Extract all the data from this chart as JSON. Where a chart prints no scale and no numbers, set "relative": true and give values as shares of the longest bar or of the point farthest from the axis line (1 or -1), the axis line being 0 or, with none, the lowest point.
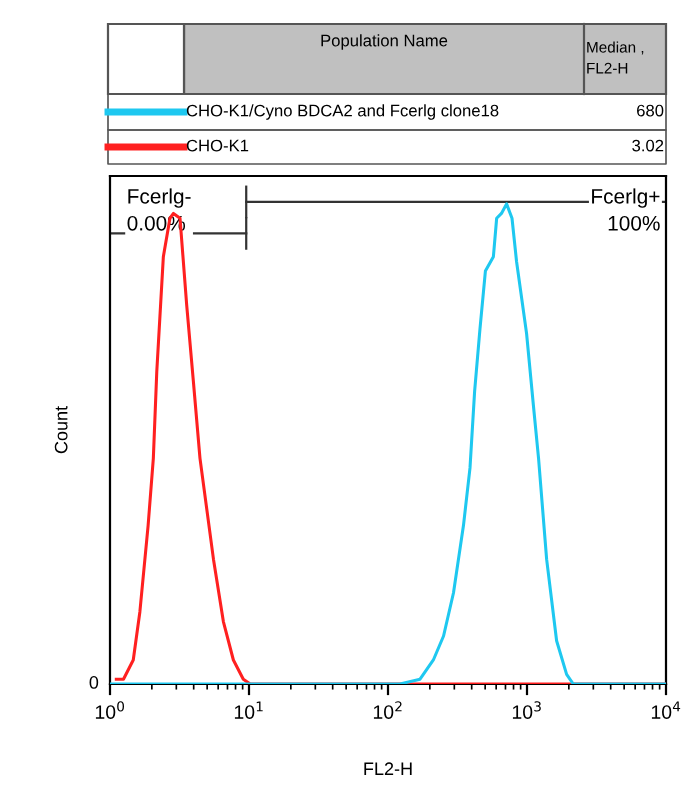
{
  "chart_data": {
    "type": "line",
    "relative": true,
    "log": "x",
    "xlabel": "FL2-H",
    "ylabel": "Count",
    "legend": "top",
    "xlim": [
      1,
      10000
    ],
    "xticks": [
      {
        "value": 1,
        "label": "10$^{0}$"
      },
      {
        "value": 10,
        "label": "10$^{1}$"
      },
      {
        "value": 100,
        "label": "10$^{2}$"
      },
      {
        "value": 1000,
        "label": "10$^{3}$"
      },
      {
        "value": 10000,
        "label": "10$^{4}$"
      }
    ],
    "grid": false,
    "marker": "none",
    "line_style": "solid",
    "series": [
      {
        "name": "CHO-K1",
        "color": "#ff2020",
        "x": [
          1.11,
          1.25,
          1.47,
          1.64,
          1.88,
          2.05,
          2.17,
          2.42,
          2.7,
          2.86,
          3.19,
          3.56,
          3.98,
          4.44,
          5.55,
          6.54,
          7.72,
          9.1,
          10.2,
          10000
        ],
        "values": [
          0.01,
          0.01,
          0.05,
          0.15,
          0.33,
          0.47,
          0.65,
          0.89,
          0.97,
          0.98,
          0.97,
          0.79,
          0.63,
          0.47,
          0.26,
          0.13,
          0.05,
          0.01,
          0,
          0
        ]
      },
      {
        "name": "CHO-K1/Cyno BDCA2 and Fcerlg clone18",
        "color": "#1ec8f0",
        "x": [
          1,
          122,
          170,
          212,
          251,
          296,
          349,
          389,
          420,
          459,
          502,
          573,
          605,
          655,
          713,
          780,
          841,
          993,
          1112,
          1211,
          1384,
          1633,
          1928,
          2153,
          10000
        ],
        "values": [
          0,
          0,
          0.01,
          0.05,
          0.1,
          0.19,
          0.33,
          0.45,
          0.61,
          0.74,
          0.86,
          0.89,
          0.97,
          0.98,
          1,
          0.97,
          0.88,
          0.73,
          0.58,
          0.47,
          0.26,
          0.09,
          0.02,
          0,
          0
        ]
      }
    ],
    "annotations": [
      "Population Name",
      "Median ,\nFL2-H",
      "680",
      "3.02",
      "0",
      "Fcerlg-\n0.00%",
      "Fcerlg+\n100%"
    ]
  }
}
